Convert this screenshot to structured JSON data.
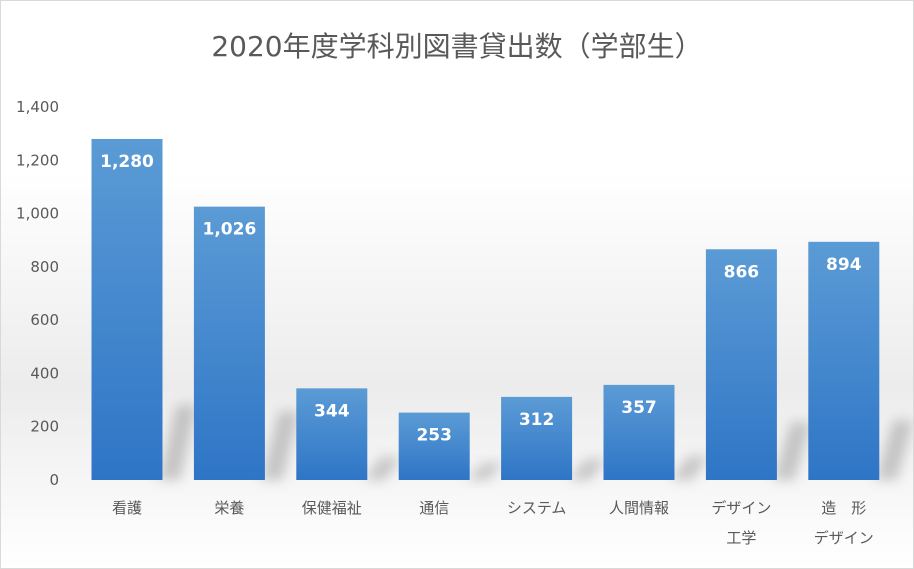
{
  "chart_data": {
    "type": "bar",
    "title": "2020年度学科別図書貸出数（学部生）",
    "categories": [
      [
        "看護"
      ],
      [
        "栄養"
      ],
      [
        "保健福祉"
      ],
      [
        "通信"
      ],
      [
        "システム"
      ],
      [
        "人間情報"
      ],
      [
        "デザイン",
        "工学"
      ],
      [
        "造　形",
        "デザイン"
      ]
    ],
    "values": [
      1280,
      1026,
      344,
      253,
      312,
      357,
      866,
      894
    ],
    "data_labels": [
      "1,280",
      "1,026",
      "344",
      "253",
      "312",
      "357",
      "866",
      "894"
    ],
    "ylim": [
      0,
      1400
    ],
    "yticks": [
      "0",
      "200",
      "400",
      "600",
      "800",
      "1,000",
      "1,200",
      "1,400"
    ],
    "xlabel": "",
    "ylabel": "",
    "grid": false,
    "legend": "none",
    "bar_color_top": "#5b9bd5",
    "bar_color_bottom": "#2e75c6"
  }
}
